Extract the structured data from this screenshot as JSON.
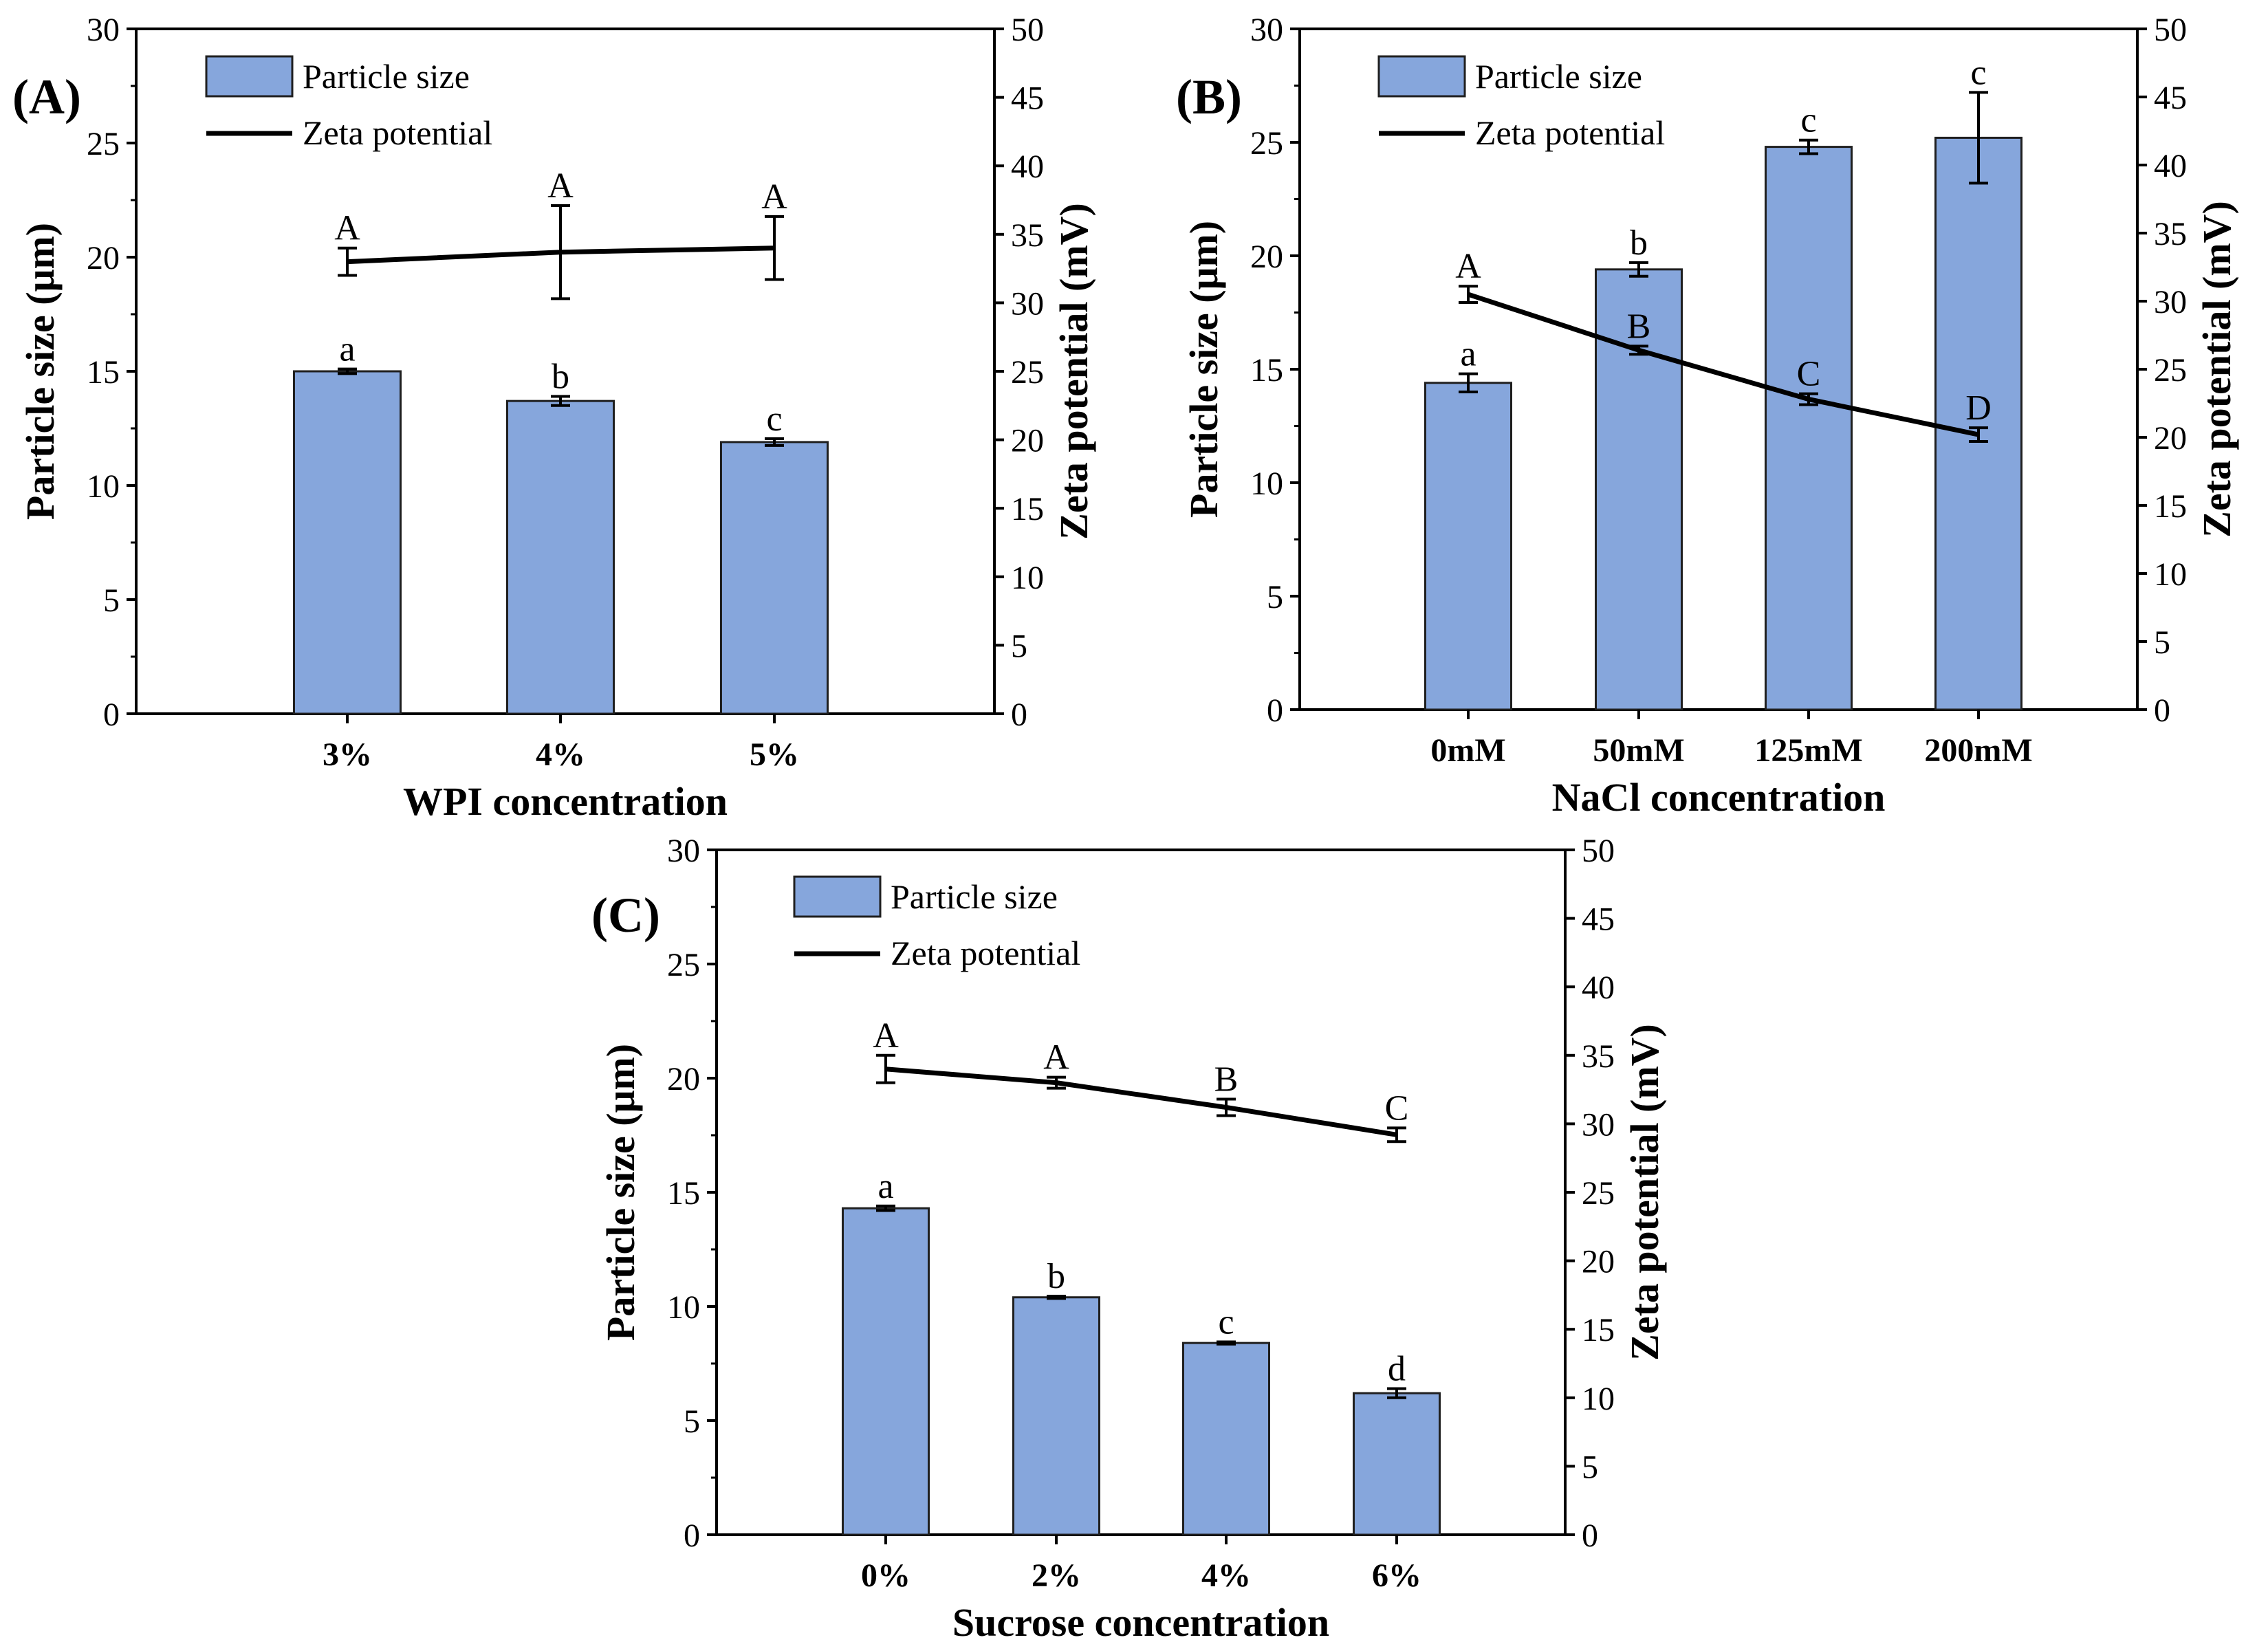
{
  "colors": {
    "bar": "#86a6dc",
    "bar_edge": "#1f1f1f",
    "line": "#000000"
  },
  "chart_data": [
    {
      "type": "bar",
      "panel_label": "(A)",
      "xlabel": "WPI concentration",
      "ylabel_left": "Particle size (μm)",
      "ylabel_right": "Zeta potential (mV)",
      "ylim_left": [
        0,
        30
      ],
      "yticks_left": [
        0,
        5,
        10,
        15,
        20,
        25,
        30
      ],
      "ylim_right": [
        0,
        50
      ],
      "yticks_right": [
        0,
        5,
        10,
        15,
        20,
        25,
        30,
        35,
        40,
        45,
        50
      ],
      "categories": [
        "3%",
        "4%",
        "5%"
      ],
      "legend": {
        "bar": "Particle size",
        "line": "Zeta potential",
        "position": "top-left"
      },
      "series": [
        {
          "name": "Particle size",
          "axis": "left",
          "kind": "bar",
          "values": [
            15.0,
            13.7,
            11.9
          ],
          "errors": [
            0.1,
            0.2,
            0.15
          ],
          "letters": [
            "a",
            "b",
            "c"
          ]
        },
        {
          "name": "Zeta potential",
          "axis": "right",
          "kind": "line",
          "values": [
            33.0,
            33.7,
            34.0
          ],
          "errors": [
            1.0,
            3.4,
            2.3
          ],
          "letters": [
            "A",
            "A",
            "A"
          ]
        }
      ]
    },
    {
      "type": "bar",
      "panel_label": "(B)",
      "xlabel": "NaCl concentration",
      "ylabel_left": "Particle size (μm)",
      "ylabel_right": "Zeta potential (mV)",
      "ylim_left": [
        0,
        30
      ],
      "yticks_left": [
        0,
        5,
        10,
        15,
        20,
        25,
        30
      ],
      "ylim_right": [
        0,
        50
      ],
      "yticks_right": [
        0,
        5,
        10,
        15,
        20,
        25,
        30,
        35,
        40,
        45,
        50
      ],
      "categories": [
        "0mM",
        "50mM",
        "125mM",
        "200mM"
      ],
      "legend": {
        "bar": "Particle size",
        "line": "Zeta potential",
        "position": "top-left"
      },
      "series": [
        {
          "name": "Particle size",
          "axis": "left",
          "kind": "bar",
          "values": [
            14.4,
            19.4,
            24.8,
            25.2
          ],
          "errors": [
            0.4,
            0.3,
            0.3,
            2.0
          ],
          "letters": [
            "a",
            "b",
            "c",
            "c"
          ]
        },
        {
          "name": "Zeta potential",
          "axis": "right",
          "kind": "line",
          "values": [
            30.5,
            26.4,
            22.8,
            20.2
          ],
          "errors": [
            0.6,
            0.3,
            0.4,
            0.5
          ],
          "letters": [
            "A",
            "B",
            "C",
            "D"
          ]
        }
      ]
    },
    {
      "type": "bar",
      "panel_label": "(C)",
      "xlabel": "Sucrose concentration",
      "ylabel_left": "Particle size (μm)",
      "ylabel_right": "Zeta potential (mV)",
      "ylim_left": [
        0,
        30
      ],
      "yticks_left": [
        0,
        5,
        10,
        15,
        20,
        25,
        30
      ],
      "ylim_right": [
        0,
        50
      ],
      "yticks_right": [
        0,
        5,
        10,
        15,
        20,
        25,
        30,
        35,
        40,
        45,
        50
      ],
      "categories": [
        "0%",
        "2%",
        "4%",
        "6%"
      ],
      "legend": {
        "bar": "Particle size",
        "line": "Zeta potential",
        "position": "top-left"
      },
      "series": [
        {
          "name": "Particle size",
          "axis": "left",
          "kind": "bar",
          "values": [
            14.3,
            10.4,
            8.4,
            6.2
          ],
          "errors": [
            0.1,
            0.05,
            0.05,
            0.2
          ],
          "letters": [
            "a",
            "b",
            "c",
            "d"
          ]
        },
        {
          "name": "Zeta potential",
          "axis": "right",
          "kind": "line",
          "values": [
            34.0,
            33.0,
            31.2,
            29.2
          ],
          "errors": [
            1.0,
            0.4,
            0.6,
            0.5
          ],
          "letters": [
            "A",
            "A",
            "B",
            "C"
          ]
        }
      ]
    }
  ]
}
